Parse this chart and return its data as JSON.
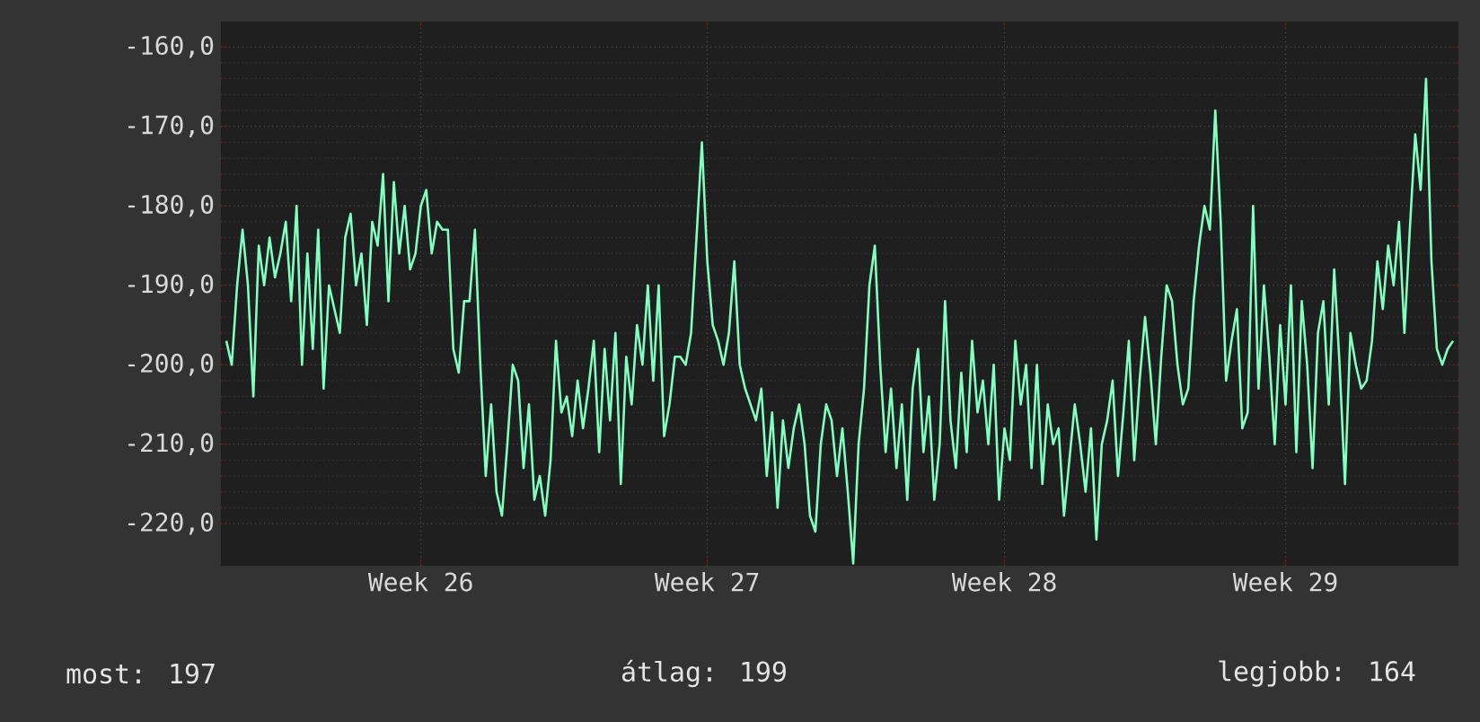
{
  "chart_data": {
    "type": "line",
    "categories": [
      null,
      null,
      null,
      null,
      null,
      null,
      null,
      null,
      null,
      null,
      null,
      null,
      null,
      null,
      null,
      null,
      null,
      null,
      null,
      null,
      null,
      null,
      null,
      null,
      null,
      null,
      null,
      null,
      null,
      null,
      null,
      null,
      null,
      null,
      null,
      null,
      "Week 26",
      null,
      null,
      null,
      null,
      null,
      null,
      null,
      null,
      null,
      null,
      null,
      null,
      null,
      null,
      null,
      null,
      null,
      null,
      null,
      null,
      null,
      null,
      null,
      null,
      null,
      null,
      null,
      null,
      null,
      null,
      null,
      null,
      null,
      null,
      null,
      null,
      null,
      null,
      null,
      null,
      null,
      null,
      null,
      null,
      null,
      null,
      null,
      null,
      null,
      null,
      null,
      null,
      "Week 27",
      null,
      null,
      null,
      null,
      null,
      null,
      null,
      null,
      null,
      null,
      null,
      null,
      null,
      null,
      null,
      null,
      null,
      null,
      null,
      null,
      null,
      null,
      null,
      null,
      null,
      null,
      null,
      null,
      null,
      null,
      null,
      null,
      null,
      null,
      null,
      null,
      null,
      null,
      null,
      null,
      null,
      null,
      null,
      null,
      null,
      null,
      null,
      null,
      null,
      null,
      null,
      null,
      null,
      null,
      "Week 28",
      null,
      null,
      null,
      null,
      null,
      null,
      null,
      null,
      null,
      null,
      null,
      null,
      null,
      null,
      null,
      null,
      null,
      null,
      null,
      null,
      null,
      null,
      null,
      null,
      null,
      null,
      null,
      null,
      null,
      null,
      null,
      null,
      null,
      null,
      null,
      null,
      null,
      null,
      null,
      null,
      null,
      null,
      null,
      null,
      null,
      null,
      null,
      null,
      null,
      null,
      null,
      "Week 29",
      null,
      null,
      null,
      null,
      null,
      null,
      null,
      null,
      null,
      null,
      null,
      null,
      null,
      null,
      null,
      null,
      null,
      null,
      null,
      null,
      null,
      null,
      null,
      null,
      null,
      null,
      null,
      null,
      null,
      null,
      null
    ],
    "series": [
      {
        "color": "#80ffc0",
        "values": [
          -197,
          -200,
          -190,
          -183,
          -190,
          -204,
          -185,
          -190,
          -184,
          -189,
          -186,
          -182,
          -192,
          -180,
          -200,
          -186,
          -198,
          -183,
          -203,
          -190,
          -193,
          -196,
          -184,
          -181,
          -190,
          -186,
          -195,
          -182,
          -185,
          -176,
          -192,
          -177,
          -186,
          -180,
          -188,
          -186,
          -180,
          -178,
          -186,
          -182,
          -183,
          -183,
          -198,
          -201,
          -192,
          -192,
          -183,
          -200,
          -214,
          -205,
          -216,
          -219,
          -210,
          -200,
          -202,
          -213,
          -205,
          -217,
          -214,
          -219,
          -212,
          -197,
          -206,
          -204,
          -209,
          -202,
          -208,
          -203,
          -197,
          -211,
          -198,
          -207,
          -196,
          -215,
          -199,
          -205,
          -195,
          -200,
          -190,
          -202,
          -190,
          -209,
          -205,
          -199,
          -199,
          -200,
          -196,
          -184,
          -172,
          -187,
          -195,
          -197,
          -200,
          -196,
          -187,
          -200,
          -203,
          -205,
          -207,
          -203,
          -214,
          -206,
          -218,
          -207,
          -213,
          -208,
          -205,
          -210,
          -219,
          -221,
          -210,
          -205,
          -207,
          -214,
          -208,
          -216,
          -225,
          -210,
          -203,
          -190,
          -185,
          -200,
          -211,
          -203,
          -213,
          -205,
          -217,
          -203,
          -198,
          -211,
          -204,
          -217,
          -210,
          -192,
          -207,
          -213,
          -201,
          -211,
          -197,
          -206,
          -202,
          -210,
          -200,
          -217,
          -208,
          -212,
          -197,
          -205,
          -200,
          -213,
          -200,
          -215,
          -205,
          -210,
          -208,
          -219,
          -212,
          -205,
          -210,
          -216,
          -208,
          -222,
          -210,
          -207,
          -202,
          -214,
          -206,
          -197,
          -212,
          -202,
          -194,
          -201,
          -210,
          -199,
          -190,
          -192,
          -200,
          -205,
          -203,
          -192,
          -185,
          -180,
          -183,
          -168,
          -182,
          -202,
          -197,
          -193,
          -208,
          -206,
          -180,
          -203,
          -190,
          -199,
          -210,
          -195,
          -205,
          -190,
          -211,
          -192,
          -200,
          -213,
          -196,
          -192,
          -205,
          -188,
          -200,
          -215,
          -196,
          -200,
          -203,
          -202,
          -197,
          -187,
          -193,
          -185,
          -190,
          -182,
          -196,
          -183,
          -171,
          -178,
          -164,
          -187,
          -198,
          -200,
          -198,
          -197
        ]
      }
    ],
    "ylim": [
      -225.3,
      -156.8
    ],
    "yticks": [
      {
        "value": -160,
        "label": "-160,0"
      },
      {
        "value": -170,
        "label": "-170,0"
      },
      {
        "value": -180,
        "label": "-180,0"
      },
      {
        "value": -190,
        "label": "-190,0"
      },
      {
        "value": -200,
        "label": "-200,0"
      },
      {
        "value": -210,
        "label": "-210,0"
      },
      {
        "value": -220,
        "label": "-220,0"
      }
    ],
    "grid": true,
    "annotations": [
      "most: 197",
      "átlag: 199",
      "legjobb: 164"
    ]
  }
}
